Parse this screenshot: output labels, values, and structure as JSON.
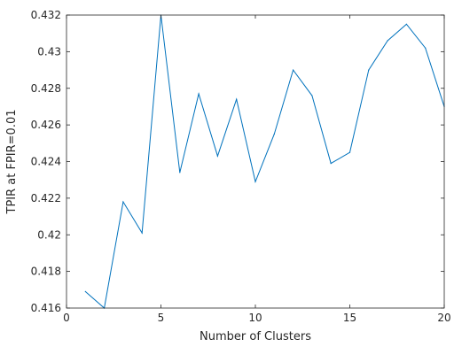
{
  "chart_data": {
    "type": "line",
    "title": "",
    "xlabel": "Number of Clusters",
    "ylabel": "TPIR at FPIR=0.01",
    "xlim": [
      0,
      20
    ],
    "ylim": [
      0.416,
      0.432
    ],
    "grid": false,
    "xticks": [
      "0",
      "5",
      "10",
      "15",
      "20"
    ],
    "yticks": [
      "0.416",
      "0.418",
      "0.42",
      "0.422",
      "0.424",
      "0.426",
      "0.428",
      "0.43",
      "0.432"
    ],
    "series": [
      {
        "color": "#0072bd",
        "x": [
          1,
          2,
          3,
          4,
          5,
          6,
          7,
          8,
          9,
          10,
          11,
          12,
          13,
          14,
          15,
          16,
          17,
          18,
          19,
          20
        ],
        "y": [
          0.4169,
          0.416,
          0.4218,
          0.4201,
          0.432,
          0.4234,
          0.4277,
          0.4243,
          0.4274,
          0.4229,
          0.4255,
          0.429,
          0.4276,
          0.4239,
          0.4245,
          0.429,
          0.4306,
          0.4315,
          0.4302,
          0.427
        ]
      }
    ]
  }
}
